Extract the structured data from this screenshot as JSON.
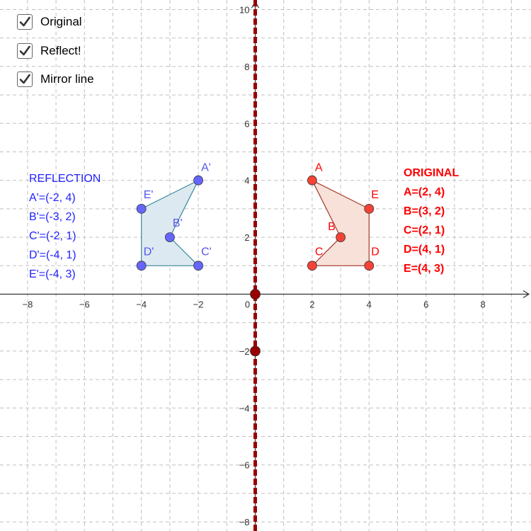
{
  "colors": {
    "grid": "#c0c0c0",
    "axis": "#333333",
    "mirror_line": "#990000",
    "original": "#ff0000",
    "original_fill": "#f7e1d8",
    "original_point": "#f44336",
    "reflection": "#2222ff",
    "reflection_fill": "#dde9f1",
    "reflection_point": "#6666ff",
    "reflection_label": "#5555ee"
  },
  "controls": {
    "checkboxes": [
      {
        "label": "Original",
        "checked": true
      },
      {
        "label": "Reflect!",
        "checked": true
      },
      {
        "label": "Mirror line",
        "checked": true
      }
    ]
  },
  "axes": {
    "x_ticks": [
      "−8",
      "−6",
      "−4",
      "−2",
      "0",
      "2",
      "4",
      "6",
      "8"
    ],
    "y_ticks": [
      "10",
      "8",
      "6",
      "4",
      "2",
      "−2",
      "−4",
      "−6",
      "−8"
    ]
  },
  "mirror_line": {
    "x": 0,
    "points": [
      {
        "x": 0,
        "y": 0
      },
      {
        "x": 0,
        "y": -2
      }
    ]
  },
  "original": {
    "points": [
      {
        "name": "A",
        "x": 2,
        "y": 4
      },
      {
        "name": "B",
        "x": 3,
        "y": 2
      },
      {
        "name": "C",
        "x": 2,
        "y": 1
      },
      {
        "name": "D",
        "x": 4,
        "y": 1
      },
      {
        "name": "E",
        "x": 4,
        "y": 3
      }
    ],
    "info": {
      "title": "ORIGINAL",
      "lines": [
        "A=(2, 4)",
        "B=(3, 2)",
        "C=(2, 1)",
        "D=(4, 1)",
        "E=(4, 3)"
      ]
    }
  },
  "reflection": {
    "points": [
      {
        "name": "A'",
        "x": -2,
        "y": 4
      },
      {
        "name": "B'",
        "x": -3,
        "y": 2
      },
      {
        "name": "C'",
        "x": -2,
        "y": 1
      },
      {
        "name": "D'",
        "x": -4,
        "y": 1
      },
      {
        "name": "E'",
        "x": -4,
        "y": 3
      }
    ],
    "info": {
      "title": "REFLECTION",
      "lines": [
        "A'=(-2, 4)",
        "B'=(-3, 2)",
        "C'=(-2, 1)",
        "D'=(-4, 1)",
        "E'=(-4, 3)"
      ]
    }
  }
}
